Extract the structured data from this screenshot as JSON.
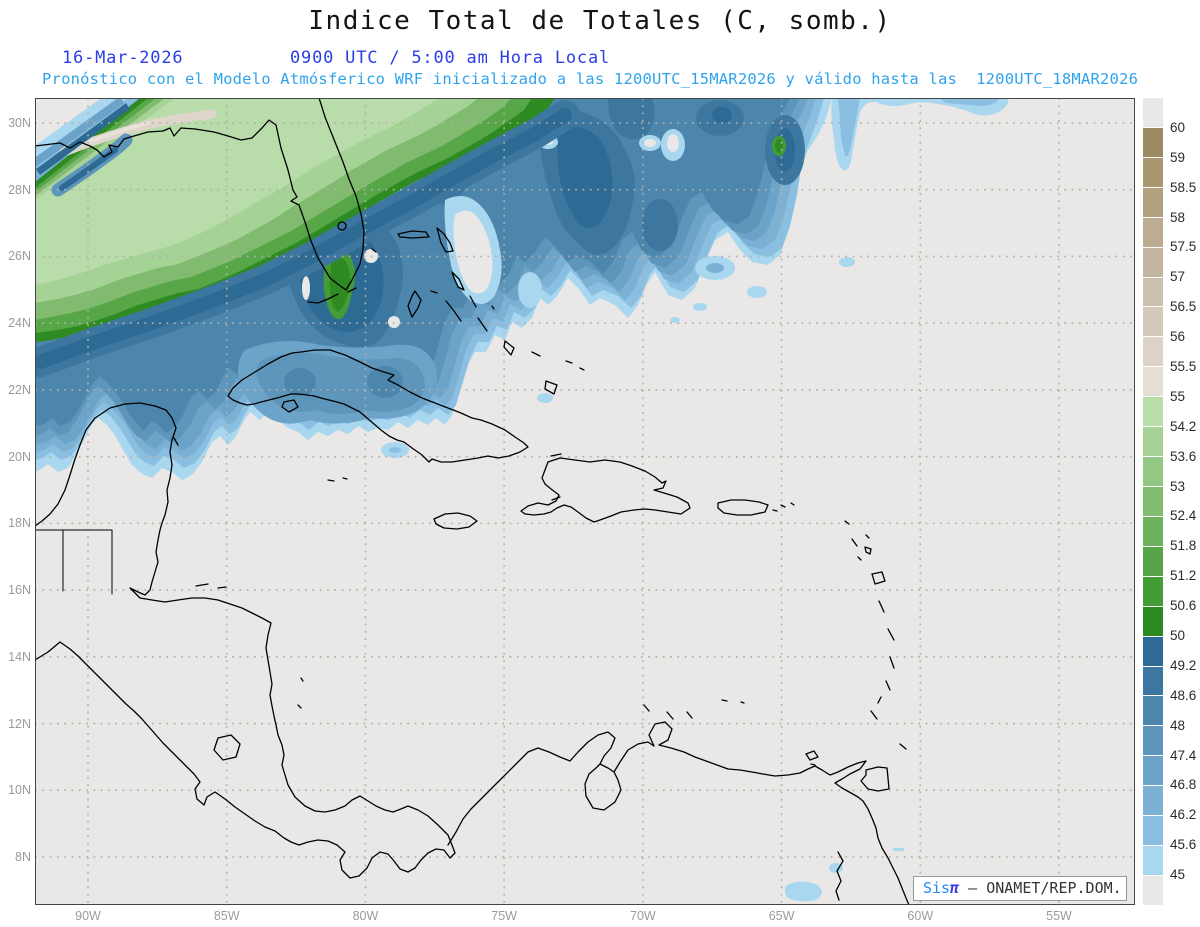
{
  "header": {
    "title": "Indice Total de Totales (C, somb.)",
    "date_label": "16-Mar-2026",
    "time_label": "0900 UTC / 5:00 am Hora Local",
    "forecast_note": "Pronóstico con el Modelo Atmósferico WRF inicializado a las 1200UTC_15MAR2026 y válido hasta las  1200UTC_18MAR2026"
  },
  "attribution": {
    "brand_sis": "Sis",
    "brand_pi": "π",
    "text": " – ONAMET/REP.DOM."
  },
  "axes": {
    "lat_ticks": [
      {
        "label": "30N",
        "lat": 30
      },
      {
        "label": "28N",
        "lat": 28
      },
      {
        "label": "26N",
        "lat": 26
      },
      {
        "label": "24N",
        "lat": 24
      },
      {
        "label": "22N",
        "lat": 22
      },
      {
        "label": "20N",
        "lat": 20
      },
      {
        "label": "18N",
        "lat": 18
      },
      {
        "label": "16N",
        "lat": 16
      },
      {
        "label": "14N",
        "lat": 14
      },
      {
        "label": "12N",
        "lat": 12
      },
      {
        "label": "10N",
        "lat": 10
      },
      {
        "label": "8N",
        "lat": 8
      }
    ],
    "lon_ticks": [
      {
        "label": "90W",
        "lon": 90
      },
      {
        "label": "85W",
        "lon": 85
      },
      {
        "label": "80W",
        "lon": 80
      },
      {
        "label": "75W",
        "lon": 75
      },
      {
        "label": "70W",
        "lon": 70
      },
      {
        "label": "65W",
        "lon": 65
      },
      {
        "label": "60W",
        "lon": 60
      },
      {
        "label": "55W",
        "lon": 55
      }
    ]
  },
  "colorbar": {
    "boundary_labels": [
      "60",
      "59",
      "58.5",
      "58",
      "57.5",
      "57",
      "56.5",
      "56",
      "55.5",
      "55",
      "54.2",
      "53.6",
      "53",
      "52.4",
      "51.8",
      "51.2",
      "50.6",
      "50",
      "49.2",
      "48.6",
      "48",
      "47.4",
      "46.8",
      "46.2",
      "45.6",
      "45"
    ],
    "segment_colors": [
      "#e9e8e6",
      "#9c8a62",
      "#aa9770",
      "#b2a181",
      "#bbac92",
      "#c3b59f",
      "#ccbfad",
      "#d4c9ba",
      "#dcd3c6",
      "#e4ded4",
      "#b8dcaa",
      "#a6d298",
      "#92c884",
      "#80bb70",
      "#6cb15d",
      "#58a549",
      "#449c36",
      "#2e8b21",
      "#2d6b94",
      "#3d77a0",
      "#4c86ad",
      "#5d95bb",
      "#6ca3c8",
      "#7cb1d4",
      "#8bbfe1",
      "#a9d7f0",
      "#e9e8e6"
    ]
  },
  "chart_data": {
    "type": "heatmap",
    "subtype": "filled-contour forecast map (GrADS style)",
    "title": "Indice Total de Totales (C, somb.)",
    "variable": "Total Totals Index",
    "units": "C",
    "valid_date": "16-Mar-2026",
    "valid_time": "0900 UTC / 5:00 am Hora Local",
    "model_note": "Pronóstico con el Modelo Atmósferico WRF inicializado a las 1200UTC_15MAR2026 y válido hasta las  1200UTC_18MAR2026",
    "region": "Gulf of Mexico, Florida, Bahamas, Caribbean Sea, Central America, northern South America",
    "x_axis": {
      "ticks": [
        "90W",
        "85W",
        "80W",
        "75W",
        "70W",
        "65W",
        "60W",
        "55W"
      ],
      "range_deg_west": [
        91.9,
        52.3
      ]
    },
    "y_axis": {
      "ticks": [
        "30N",
        "28N",
        "26N",
        "24N",
        "22N",
        "20N",
        "18N",
        "16N",
        "14N",
        "12N",
        "10N",
        "8N"
      ],
      "range_deg_north": [
        6.6,
        30.8
      ]
    },
    "contour_levels": [
      45,
      45.6,
      46.2,
      46.8,
      47.4,
      48,
      48.6,
      49.2,
      50,
      50.6,
      51.2,
      51.8,
      52.4,
      53,
      53.6,
      54.2,
      55,
      55.5,
      56,
      56.5,
      57,
      57.5,
      58,
      58.5,
      59,
      60
    ],
    "palette_note": "values <45 and >60 shown light gray; 45-50 blue ramp; 50-55 green ramp; 55-60 tan/brown ramp",
    "legend_position": "right vertical colorbar",
    "grid": "dotted gray graticule every 2 deg lat / 5 deg lon",
    "features": [
      {
        "area": "Northern Gulf coast (Louisiana to Florida panhandle), diagonal NW band",
        "approx_value": "50-56, local max >55 pale streak"
      },
      {
        "area": "Florida peninsula and Bahamas / subtropical Atlantic north of ~26N",
        "approx_value": "46-50 blue shield with dark cores 49-50"
      },
      {
        "area": "South Florida embedded cells",
        "approx_value": ">50 green spots"
      },
      {
        "area": "Western Cuba and Straits of Florida",
        "approx_value": "45-48"
      },
      {
        "area": "Caribbean Sea, Central America, Hispaniola and southward",
        "approx_value": "<45 (unshaded gray)"
      },
      {
        "area": "Near Trinidad / Orinoco delta",
        "approx_value": "isolated 45-45.6 specks"
      }
    ]
  }
}
